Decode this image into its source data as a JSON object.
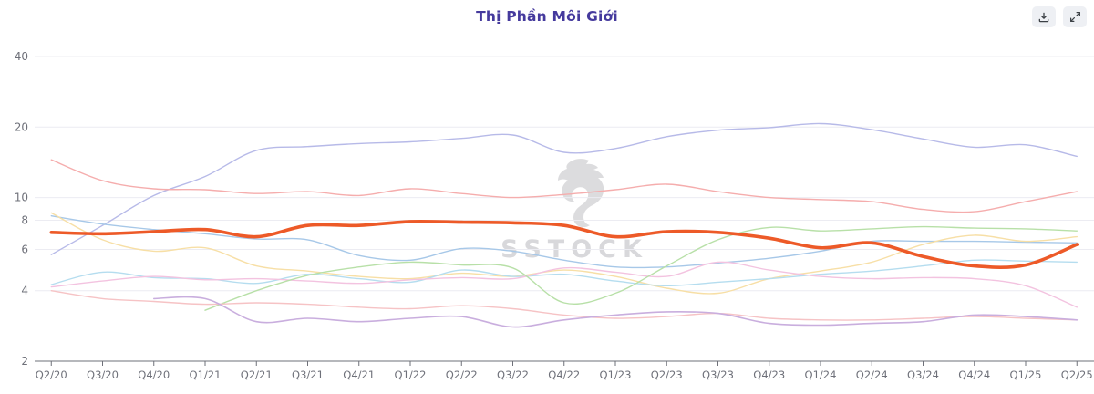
{
  "header": {
    "title": "Thị Phần Môi Giới",
    "actions": [
      {
        "icon": "download-icon",
        "label": "download"
      },
      {
        "icon": "expand-icon",
        "label": "expand"
      }
    ]
  },
  "watermark": {
    "text": "SSTOCK",
    "logo": "horse-logo"
  },
  "chart_data": {
    "type": "line",
    "title": "Thị Phần Môi Giới",
    "xlabel": "",
    "ylabel": "",
    "legend": false,
    "grid": true,
    "y_axis": {
      "scale": "log",
      "ticks": [
        40,
        20,
        10,
        8,
        6,
        4,
        2
      ],
      "range": [
        2,
        40
      ]
    },
    "categories": [
      "Q2/20",
      "Q3/20",
      "Q4/20",
      "Q1/21",
      "Q2/21",
      "Q3/21",
      "Q4/21",
      "Q1/22",
      "Q2/22",
      "Q3/22",
      "Q4/22",
      "Q1/23",
      "Q2/23",
      "Q3/23",
      "Q4/23",
      "Q1/24",
      "Q2/24",
      "Q3/24",
      "Q4/24",
      "Q1/25",
      "Q2/25"
    ],
    "series": [
      {
        "name": "faded-lavender",
        "color": "#b7bae8",
        "width": 1.4,
        "highlighted": false,
        "values": [
          5.7,
          7.6,
          10.2,
          12.3,
          15.9,
          16.5,
          17.0,
          17.3,
          17.9,
          18.5,
          15.6,
          16.2,
          18.2,
          19.4,
          19.9,
          20.7,
          19.5,
          17.8,
          16.4,
          16.8,
          15.0
        ]
      },
      {
        "name": "faded-salmon",
        "color": "#f5adad",
        "width": 1.4,
        "highlighted": false,
        "values": [
          14.5,
          11.8,
          10.9,
          10.8,
          10.4,
          10.6,
          10.2,
          10.9,
          10.4,
          10.0,
          10.3,
          10.8,
          11.4,
          10.6,
          10.0,
          9.8,
          9.6,
          8.9,
          8.7,
          9.6,
          10.6
        ]
      },
      {
        "name": "faded-steelblue",
        "color": "#a7c8e8",
        "width": 1.4,
        "highlighted": false,
        "values": [
          8.35,
          7.7,
          7.3,
          7.0,
          6.65,
          6.6,
          5.65,
          5.4,
          6.05,
          5.9,
          5.4,
          5.05,
          5.05,
          5.25,
          5.5,
          5.9,
          6.5,
          6.5,
          6.5,
          6.45,
          6.4
        ]
      },
      {
        "name": "faded-yellow",
        "color": "#f7dfa6",
        "width": 1.4,
        "highlighted": false,
        "values": [
          8.6,
          6.6,
          5.9,
          6.1,
          5.1,
          4.85,
          4.6,
          4.5,
          4.75,
          4.6,
          4.9,
          4.6,
          4.1,
          3.9,
          4.5,
          4.85,
          5.3,
          6.3,
          6.9,
          6.5,
          6.8
        ]
      },
      {
        "name": "faded-lightblue",
        "color": "#b5ddef",
        "width": 1.4,
        "highlighted": false,
        "values": [
          4.25,
          4.8,
          4.55,
          4.5,
          4.3,
          4.7,
          4.5,
          4.35,
          4.9,
          4.6,
          4.7,
          4.4,
          4.2,
          4.35,
          4.5,
          4.7,
          4.85,
          5.1,
          5.4,
          5.35,
          5.3
        ]
      },
      {
        "name": "faded-pink",
        "color": "#f3c3e0",
        "width": 1.4,
        "highlighted": false,
        "values": [
          4.15,
          4.4,
          4.6,
          4.45,
          4.5,
          4.4,
          4.3,
          4.45,
          4.55,
          4.5,
          5.0,
          4.8,
          4.6,
          5.3,
          4.9,
          4.6,
          4.5,
          4.55,
          4.5,
          4.2,
          3.4
        ]
      },
      {
        "name": "faded-green",
        "color": "#b8e0a8",
        "width": 1.4,
        "highlighted": false,
        "values": [
          null,
          null,
          null,
          3.3,
          4.0,
          4.65,
          5.05,
          5.3,
          5.15,
          5.0,
          3.55,
          3.9,
          5.1,
          6.6,
          7.45,
          7.2,
          7.35,
          7.5,
          7.4,
          7.35,
          7.2
        ]
      },
      {
        "name": "faded-lightred",
        "color": "#f6c3c5",
        "width": 1.4,
        "highlighted": false,
        "values": [
          4.0,
          3.7,
          3.6,
          3.5,
          3.55,
          3.5,
          3.4,
          3.35,
          3.45,
          3.35,
          3.15,
          3.05,
          3.1,
          3.2,
          3.05,
          3.0,
          3.0,
          3.05,
          3.1,
          3.05,
          3.0
        ]
      },
      {
        "name": "faded-purple",
        "color": "#c9aede",
        "width": 1.6,
        "highlighted": false,
        "values": [
          null,
          null,
          3.7,
          3.7,
          2.95,
          3.05,
          2.95,
          3.05,
          3.1,
          2.8,
          3.0,
          3.15,
          3.25,
          3.2,
          2.9,
          2.85,
          2.9,
          2.95,
          3.15,
          3.1,
          3.0
        ]
      },
      {
        "name": "highlighted-orange",
        "color": "#ed5a28",
        "width": 3.6,
        "highlighted": true,
        "values": [
          7.1,
          7.0,
          7.15,
          7.3,
          6.8,
          7.6,
          7.6,
          7.9,
          7.85,
          7.8,
          7.6,
          6.8,
          7.15,
          7.1,
          6.7,
          6.1,
          6.4,
          5.6,
          5.1,
          5.15,
          6.3
        ]
      }
    ],
    "axis_text_color": "#6e7079",
    "grid_color": "#ececf2"
  }
}
